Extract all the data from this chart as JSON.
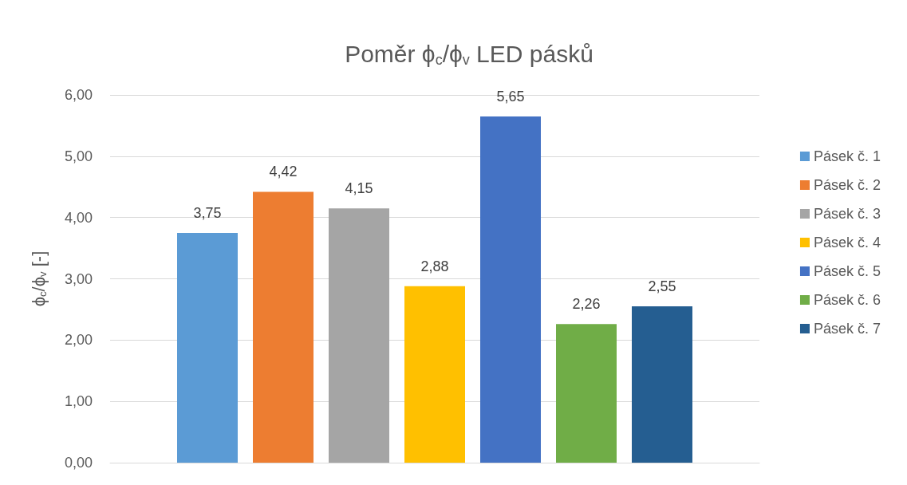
{
  "chart_data": {
    "type": "bar",
    "title": "Poměr ϕ$_{c}$/ϕ$_{v}$ LED pásků",
    "ylabel": "ϕ$_{c}$/ϕ$_{v}$ [-]",
    "categories": [
      null
    ],
    "series": [
      {
        "name": "Pásek č. 1",
        "color": "#5b9bd5",
        "values": [
          3.75
        ],
        "value_labels": [
          "3,75"
        ]
      },
      {
        "name": "Pásek č. 2",
        "color": "#ed7d31",
        "values": [
          4.42
        ],
        "value_labels": [
          "4,42"
        ]
      },
      {
        "name": "Pásek č. 3",
        "color": "#a5a5a5",
        "values": [
          4.15
        ],
        "value_labels": [
          "4,15"
        ]
      },
      {
        "name": "Pásek č. 4",
        "color": "#ffc000",
        "values": [
          2.88
        ],
        "value_labels": [
          "2,88"
        ]
      },
      {
        "name": "Pásek č. 5",
        "color": "#4472c4",
        "values": [
          5.65
        ],
        "value_labels": [
          "5,65"
        ]
      },
      {
        "name": "Pásek č. 6",
        "color": "#70ad47",
        "values": [
          2.26
        ],
        "value_labels": [
          "2,26"
        ]
      },
      {
        "name": "Pásek č. 7",
        "color": "#255e91",
        "values": [
          2.55
        ],
        "value_labels": [
          "2,55"
        ]
      }
    ],
    "ylim": [
      0,
      6
    ],
    "yticks": [
      {
        "value": 0,
        "label": "0,00"
      },
      {
        "value": 1,
        "label": "1,00"
      },
      {
        "value": 2,
        "label": "2,00"
      },
      {
        "value": 3,
        "label": "3,00"
      },
      {
        "value": 4,
        "label": "4,00"
      },
      {
        "value": 5,
        "label": "5,00"
      },
      {
        "value": 6,
        "label": "6,00"
      }
    ],
    "grid": "y",
    "legend": "right"
  }
}
